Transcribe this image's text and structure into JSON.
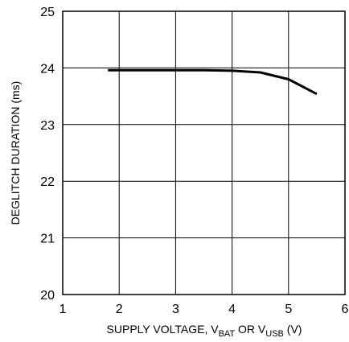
{
  "chart_data": {
    "type": "line",
    "title": "",
    "xlabel_parts": [
      {
        "text": "SUPPLY VOLTAGE, V",
        "sub": false
      },
      {
        "text": "BAT",
        "sub": true
      },
      {
        "text": " OR V",
        "sub": false
      },
      {
        "text": "USB",
        "sub": true
      },
      {
        "text": " (V)",
        "sub": false
      }
    ],
    "ylabel": "DEGLITCH DURATION (ms)",
    "xlim": [
      1,
      6
    ],
    "ylim": [
      20,
      25
    ],
    "xticks": [
      "1",
      "2",
      "3",
      "4",
      "5",
      "6"
    ],
    "yticks": [
      "20",
      "21",
      "22",
      "23",
      "24",
      "25"
    ],
    "grid": true,
    "line_color": "#000000",
    "series": [
      {
        "x": [
          1.8,
          2.0,
          2.5,
          3.0,
          3.5,
          4.0,
          4.5,
          5.0,
          5.5
        ],
        "y": [
          23.96,
          23.96,
          23.96,
          23.96,
          23.96,
          23.95,
          23.92,
          23.8,
          23.54
        ]
      }
    ]
  }
}
